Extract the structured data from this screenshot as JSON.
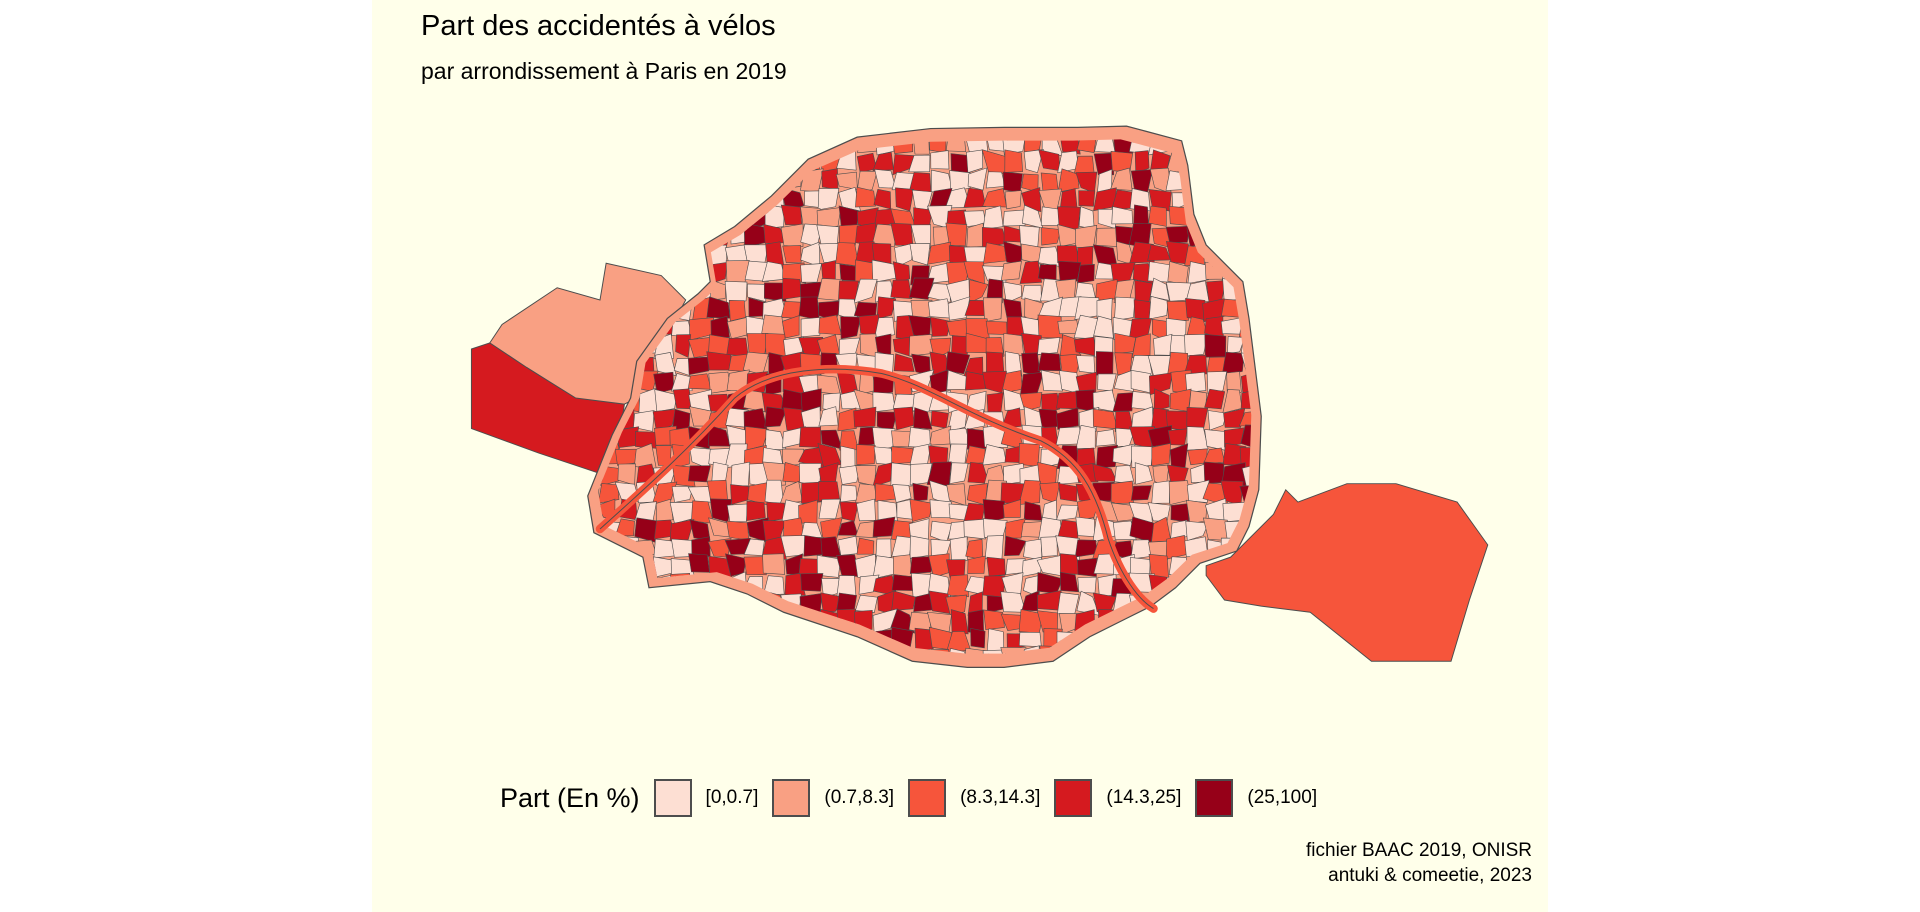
{
  "chart_data": {
    "type": "choropleth",
    "title": "Part des accidentés à vélos",
    "subtitle": "par arrondissement à Paris en 2019",
    "legend": {
      "title": "Part (En %)",
      "placement": "bottom",
      "classes": [
        {
          "label": "[0,0.7]",
          "color": "#FDDFD3"
        },
        {
          "label": "(0.7,8.3]",
          "color": "#F9A083"
        },
        {
          "label": "(8.3,14.3]",
          "color": "#F6553B"
        },
        {
          "label": "(14.3,25]",
          "color": "#D51A1F"
        },
        {
          "label": "(25,100]",
          "color": "#960018"
        }
      ]
    },
    "caption": [
      "fichier BAAC 2019, ONISR",
      "antuki & comeetie, 2023"
    ],
    "regions": {
      "bois_de_boulogne": "(14.3,25]",
      "bois_de_vincennes": "(8.3,14.3]"
    }
  },
  "colors": {
    "background": "#FFFFEA",
    "border": "#4d4d4d"
  }
}
